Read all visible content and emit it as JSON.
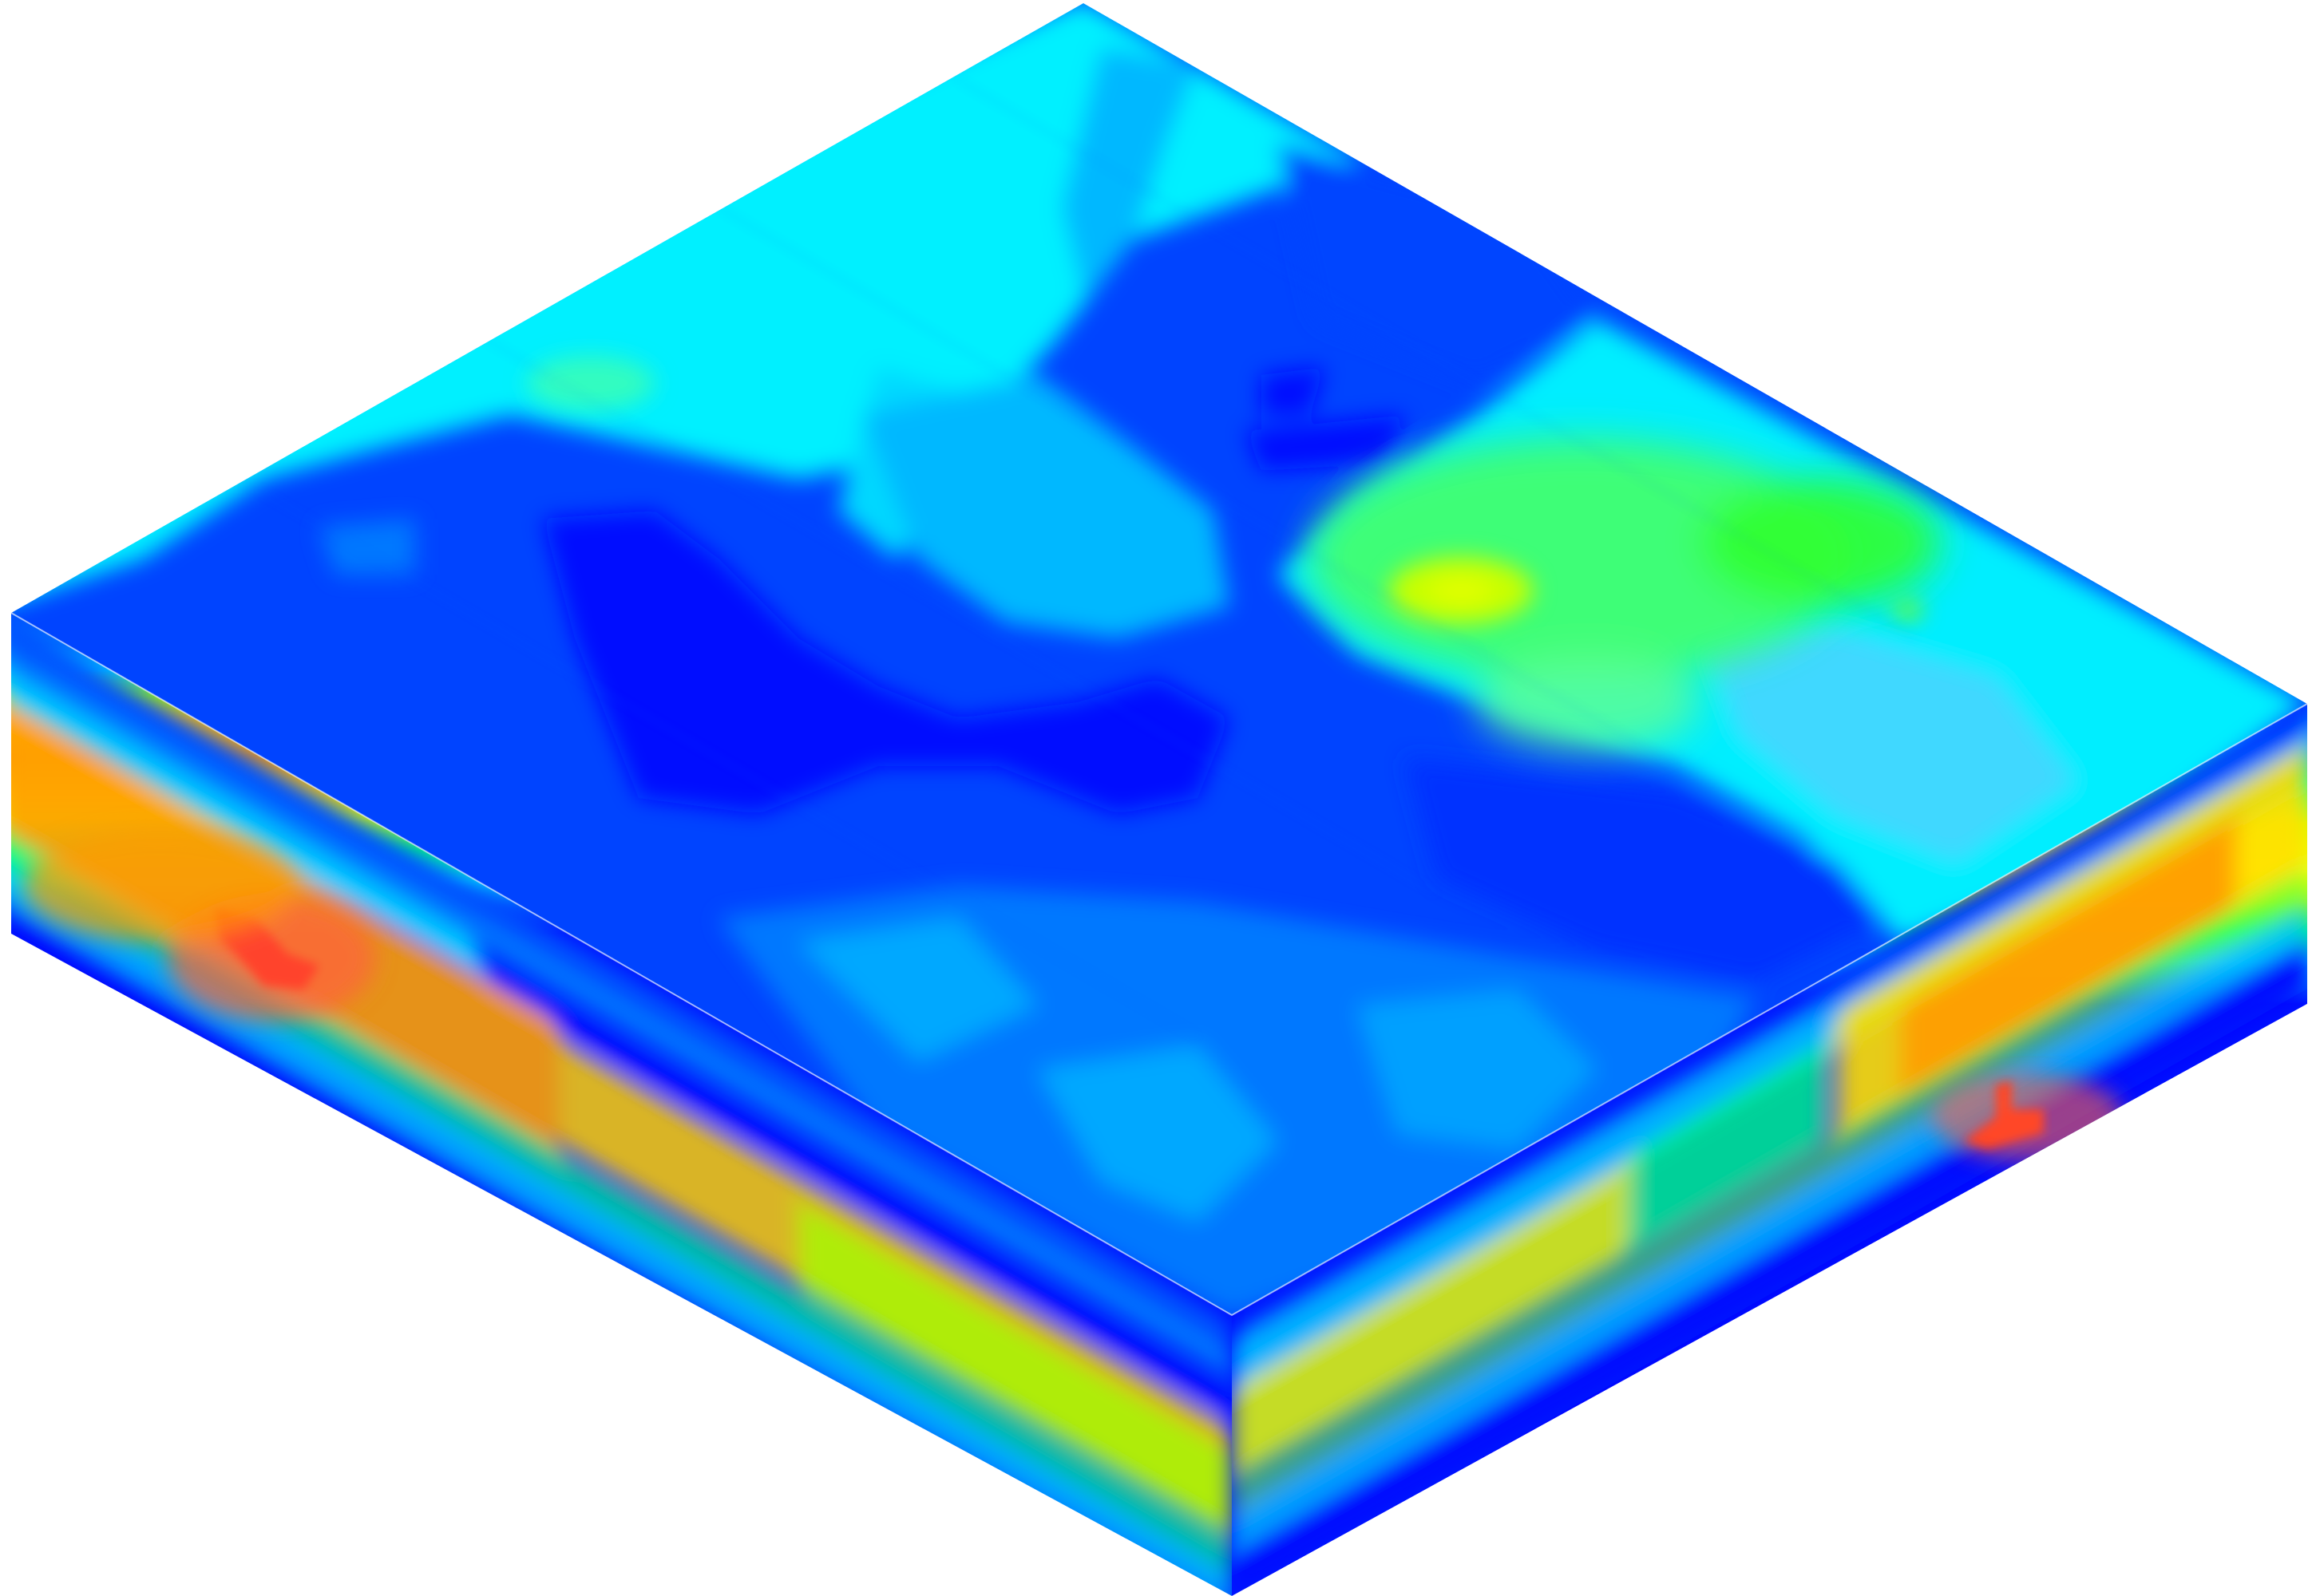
{
  "scene": {
    "type": "3d-isometric-block-model",
    "background": "#ffffff",
    "colormap": [
      "#0000ff",
      "#0050ff",
      "#00a0ff",
      "#00f0ff",
      "#00ff80",
      "#a0ff00",
      "#ffff00",
      "#ffa000",
      "#ff6040",
      "#ff0000"
    ],
    "faces": {
      "top": {
        "base": "#0044ff",
        "patches": [
          {
            "name": "cyan-region-north",
            "color": "#00f0ff"
          },
          {
            "name": "cyan-region-northeast",
            "color": "#00eeff"
          },
          {
            "name": "light-blue-region-center",
            "color": "#00b8ff"
          },
          {
            "name": "deep-blue-region-center",
            "color": "#0010ff"
          },
          {
            "name": "mid-blue-region-south",
            "color": "#0078ff"
          },
          {
            "name": "green-hotspot-east",
            "color": "#40ff40"
          },
          {
            "name": "yellow-green-spot-east",
            "color": "#c8ff00"
          },
          {
            "name": "deep-blue-region-east",
            "color": "#0030ff"
          },
          {
            "name": "light-cyan-region-southeast",
            "color": "#40d8ff"
          }
        ]
      },
      "front_left": {
        "bands": [
          {
            "name": "top-blue",
            "color": "#0050ff"
          },
          {
            "name": "cyan",
            "color": "#00c8ff"
          },
          {
            "name": "orange-hot",
            "color": "#ff9a00"
          },
          {
            "name": "yellow",
            "color": "#ffff00"
          },
          {
            "name": "green",
            "color": "#00ff80"
          },
          {
            "name": "bottom-blue",
            "color": "#0010ff"
          }
        ],
        "hotspot": {
          "name": "red-core-west",
          "color": "#ff0000"
        }
      },
      "front_right": {
        "bands": [
          {
            "name": "top-blue",
            "color": "#0020ff"
          },
          {
            "name": "cyan",
            "color": "#00c0ff"
          },
          {
            "name": "yellow",
            "color": "#e8ff00"
          },
          {
            "name": "green",
            "color": "#60ff40"
          },
          {
            "name": "bottom-blue",
            "color": "#0010ff"
          }
        ],
        "hotspot": {
          "name": "red-core-east",
          "color": "#ff2000"
        }
      }
    }
  }
}
